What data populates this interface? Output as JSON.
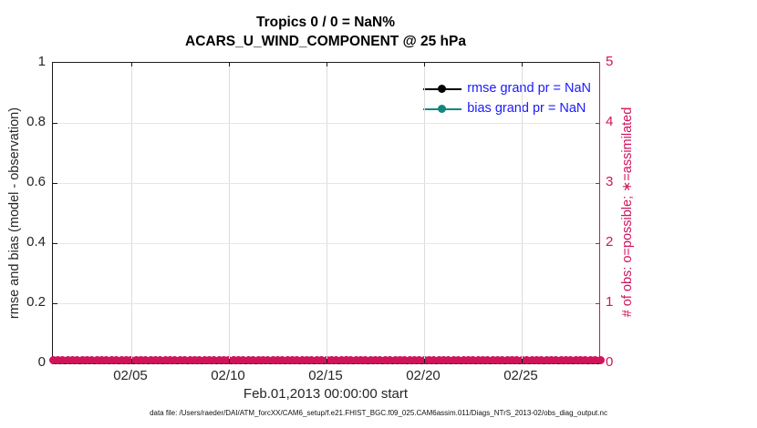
{
  "chart_data": {
    "type": "line",
    "title_line1": "Tropics 0 / 0 = NaN%",
    "title_line2": "ACARS_U_WIND_COMPONENT @ 25 hPa",
    "xlabel": "Feb.01,2013 00:00:00 start",
    "ylabel_left": "rmse and bias (model - observation)",
    "ylabel_right": "# of obs: o=possible; ∗=assimilated",
    "x_range_days": 28,
    "x_ticks": [
      {
        "label": "02/05",
        "day": 4
      },
      {
        "label": "02/10",
        "day": 9
      },
      {
        "label": "02/15",
        "day": 14
      },
      {
        "label": "02/20",
        "day": 19
      },
      {
        "label": "02/25",
        "day": 24
      }
    ],
    "ylim_left": [
      0,
      1
    ],
    "y_ticks_left": [
      {
        "label": "1",
        "value": 1.0
      },
      {
        "label": "0.8",
        "value": 0.8
      },
      {
        "label": "0.6",
        "value": 0.6
      },
      {
        "label": "0.4",
        "value": 0.4
      },
      {
        "label": "0.2",
        "value": 0.2
      },
      {
        "label": "0",
        "value": 0.0
      }
    ],
    "ylim_right": [
      0,
      5
    ],
    "y_ticks_right": [
      {
        "label": "5",
        "value": 5
      },
      {
        "label": "4",
        "value": 4
      },
      {
        "label": "3",
        "value": 3
      },
      {
        "label": "2",
        "value": 2
      },
      {
        "label": "1",
        "value": 1
      },
      {
        "label": "0",
        "value": 0
      }
    ],
    "grid": true,
    "legend_position": "top-right-inside",
    "legend": [
      {
        "label": "rmse grand pr = NaN",
        "color": "#000000"
      },
      {
        "label": "bias grand pr = NaN",
        "color": "#0f8780"
      }
    ],
    "series": [
      {
        "name": "rmse",
        "axis": "left",
        "values": null,
        "note": "all NaN - no line drawn"
      },
      {
        "name": "bias",
        "axis": "left",
        "values": null,
        "note": "all NaN - no line drawn"
      },
      {
        "name": "# of obs possible",
        "axis": "right",
        "marker": "o",
        "constant_value": 0,
        "marker_count": 113
      },
      {
        "name": "# of obs assimilated",
        "axis": "right",
        "marker": "*",
        "constant_value": 0,
        "marker_count": 113
      }
    ]
  },
  "colors": {
    "right_axis_crimson": "#d0145a",
    "bias_teal": "#0f8780",
    "legend_text_blue": "#1a1aff",
    "tick_label_gray": "#262626",
    "hgrid_pink": "#f8dce6",
    "vgrid_gray": "#dcdcdc"
  },
  "footer": {
    "data_file_note": "data file: /Users/raeder/DAI/ATM_forcXX/CAM6_setup/f.e21.FHIST_BGC.f09_025.CAM6assim.011/Diags_NTrS_2013-02/obs_diag_output.nc"
  }
}
